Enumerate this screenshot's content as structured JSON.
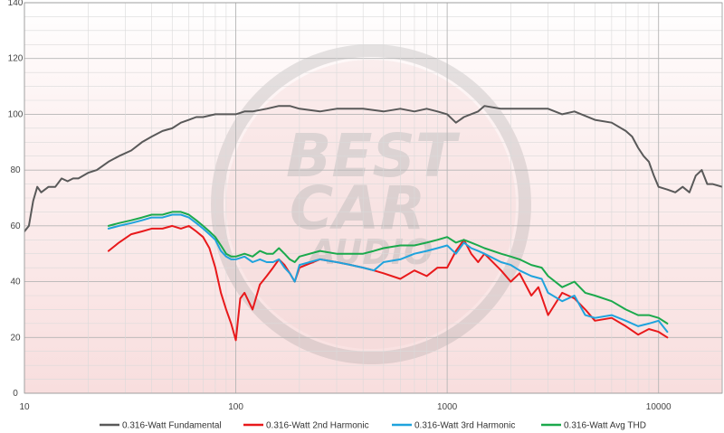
{
  "chart_data": {
    "type": "line",
    "x_scale": "log",
    "xlim": [
      10,
      20000
    ],
    "ylim": [
      0,
      140
    ],
    "x_ticks": [
      10,
      100,
      1000,
      10000
    ],
    "x_tick_labels": [
      "10",
      "100",
      "1000",
      "10000"
    ],
    "y_ticks": [
      0,
      20,
      40,
      60,
      80,
      100,
      120,
      140
    ],
    "y_tick_labels": [
      "0",
      "20",
      "40",
      "60",
      "80",
      "100",
      "120",
      "140"
    ],
    "grid": true,
    "legend_position": "bottom",
    "watermark": {
      "lines": [
        "BEST",
        "CAR",
        "AUDIO"
      ]
    },
    "series": [
      {
        "name": "0.316-Watt Fundamental",
        "color": "#595959",
        "x": [
          10,
          10.5,
          11,
          11.5,
          12,
          13,
          14,
          15,
          16,
          17,
          18,
          20,
          22,
          25,
          28,
          32,
          36,
          40,
          45,
          50,
          55,
          60,
          65,
          70,
          80,
          90,
          100,
          110,
          120,
          140,
          160,
          180,
          200,
          250,
          300,
          350,
          400,
          500,
          600,
          700,
          800,
          900,
          1000,
          1100,
          1200,
          1400,
          1500,
          1800,
          2000,
          2500,
          3000,
          3500,
          4000,
          5000,
          6000,
          7000,
          7500,
          8000,
          8500,
          9000,
          9500,
          10000,
          11000,
          12000,
          13000,
          14000,
          15000,
          16000,
          17000,
          18000,
          20000
        ],
        "y": [
          58,
          60,
          69,
          74,
          72,
          74,
          74,
          77,
          76,
          77,
          77,
          79,
          80,
          83,
          85,
          87,
          90,
          92,
          94,
          95,
          97,
          98,
          99,
          99,
          100,
          100,
          100,
          101,
          101,
          102,
          103,
          103,
          102,
          101,
          102,
          102,
          102,
          101,
          102,
          101,
          102,
          101,
          100,
          97,
          99,
          101,
          103,
          102,
          102,
          102,
          102,
          100,
          101,
          98,
          97,
          94,
          92,
          88,
          85,
          83,
          78,
          74,
          73,
          72,
          74,
          72,
          78,
          80,
          75,
          75,
          74
        ]
      },
      {
        "name": "0.316-Watt 2nd Harmonic",
        "color": "#e8191b",
        "x": [
          25,
          28,
          32,
          36,
          40,
          45,
          50,
          55,
          60,
          65,
          70,
          75,
          80,
          85,
          90,
          95,
          100,
          105,
          110,
          120,
          130,
          140,
          150,
          160,
          170,
          180,
          190,
          200,
          250,
          300,
          350,
          400,
          450,
          500,
          600,
          700,
          800,
          900,
          1000,
          1100,
          1200,
          1300,
          1400,
          1500,
          1800,
          2000,
          2200,
          2500,
          2700,
          3000,
          3500,
          4000,
          4500,
          5000,
          6000,
          7000,
          8000,
          9000,
          10000,
          11000
        ],
        "y": [
          51,
          54,
          57,
          58,
          59,
          59,
          60,
          59,
          60,
          58,
          56,
          52,
          45,
          36,
          30,
          25,
          19,
          34,
          36,
          30,
          39,
          42,
          45,
          48,
          46,
          43,
          40,
          45,
          48,
          47,
          46,
          45,
          44,
          43,
          41,
          44,
          42,
          45,
          45,
          51,
          55,
          50,
          47,
          50,
          44,
          40,
          43,
          35,
          38,
          28,
          36,
          34,
          30,
          26,
          27,
          24,
          21,
          23,
          22,
          20
        ]
      },
      {
        "name": "0.316-Watt 3rd Harmonic",
        "color": "#1fa3dd",
        "x": [
          25,
          28,
          32,
          36,
          40,
          45,
          50,
          55,
          60,
          65,
          70,
          75,
          80,
          85,
          90,
          95,
          100,
          110,
          120,
          130,
          140,
          150,
          160,
          170,
          180,
          190,
          200,
          250,
          300,
          350,
          400,
          450,
          500,
          600,
          700,
          800,
          900,
          1000,
          1100,
          1200,
          1300,
          1400,
          1500,
          1800,
          2000,
          2200,
          2500,
          2800,
          3000,
          3500,
          4000,
          4500,
          5000,
          6000,
          7000,
          8000,
          9000,
          10000,
          11000
        ],
        "y": [
          59,
          60,
          61,
          62,
          63,
          63,
          64,
          64,
          63,
          61,
          59,
          57,
          55,
          51,
          49,
          48,
          48,
          49,
          47,
          48,
          47,
          47,
          48,
          45,
          43,
          40,
          46,
          48,
          47,
          46,
          45,
          44,
          47,
          48,
          50,
          51,
          52,
          53,
          50,
          54,
          52,
          51,
          50,
          47,
          46,
          44,
          42,
          41,
          36,
          33,
          35,
          28,
          27,
          28,
          26,
          24,
          25,
          26,
          22
        ]
      },
      {
        "name": "0.316-Watt Avg THD",
        "color": "#1ba94c",
        "x": [
          25,
          28,
          32,
          36,
          40,
          45,
          50,
          55,
          60,
          65,
          70,
          75,
          80,
          85,
          90,
          95,
          100,
          110,
          120,
          130,
          140,
          150,
          160,
          170,
          180,
          190,
          200,
          250,
          300,
          350,
          400,
          450,
          500,
          600,
          700,
          800,
          900,
          1000,
          1100,
          1200,
          1300,
          1400,
          1500,
          1800,
          2000,
          2200,
          2500,
          2800,
          3000,
          3500,
          4000,
          4500,
          5000,
          6000,
          7000,
          8000,
          9000,
          10000,
          11000
        ],
        "y": [
          60,
          61,
          62,
          63,
          64,
          64,
          65,
          65,
          64,
          62,
          60,
          58,
          56,
          53,
          50,
          49,
          49,
          50,
          49,
          51,
          50,
          50,
          52,
          50,
          48,
          47,
          49,
          51,
          50,
          50,
          50,
          51,
          52,
          53,
          53,
          54,
          55,
          56,
          54,
          55,
          54,
          53,
          52,
          50,
          49,
          48,
          46,
          45,
          42,
          38,
          40,
          36,
          35,
          33,
          30,
          28,
          28,
          27,
          25
        ]
      }
    ]
  }
}
